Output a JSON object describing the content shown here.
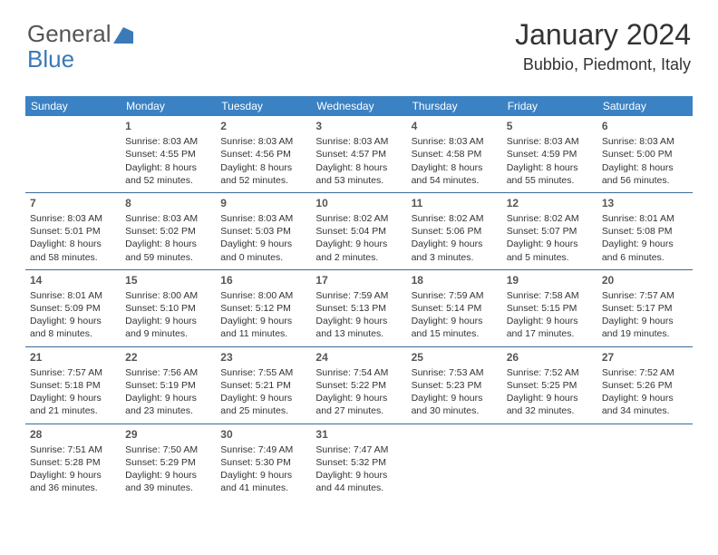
{
  "logo": {
    "part1": "General",
    "part2": "Blue"
  },
  "title": "January 2024",
  "location": "Bubbio, Piedmont, Italy",
  "colors": {
    "header_bg": "#3a82c4",
    "header_text": "#ffffff",
    "row_border": "#3a6a9a",
    "logo_gray": "#555555",
    "logo_blue": "#3a7ab8",
    "body_text": "#333333"
  },
  "dayNames": [
    "Sunday",
    "Monday",
    "Tuesday",
    "Wednesday",
    "Thursday",
    "Friday",
    "Saturday"
  ],
  "weeks": [
    [
      null,
      {
        "n": "1",
        "sr": "8:03 AM",
        "ss": "4:55 PM",
        "dl": "8 hours and 52 minutes."
      },
      {
        "n": "2",
        "sr": "8:03 AM",
        "ss": "4:56 PM",
        "dl": "8 hours and 52 minutes."
      },
      {
        "n": "3",
        "sr": "8:03 AM",
        "ss": "4:57 PM",
        "dl": "8 hours and 53 minutes."
      },
      {
        "n": "4",
        "sr": "8:03 AM",
        "ss": "4:58 PM",
        "dl": "8 hours and 54 minutes."
      },
      {
        "n": "5",
        "sr": "8:03 AM",
        "ss": "4:59 PM",
        "dl": "8 hours and 55 minutes."
      },
      {
        "n": "6",
        "sr": "8:03 AM",
        "ss": "5:00 PM",
        "dl": "8 hours and 56 minutes."
      }
    ],
    [
      {
        "n": "7",
        "sr": "8:03 AM",
        "ss": "5:01 PM",
        "dl": "8 hours and 58 minutes."
      },
      {
        "n": "8",
        "sr": "8:03 AM",
        "ss": "5:02 PM",
        "dl": "8 hours and 59 minutes."
      },
      {
        "n": "9",
        "sr": "8:03 AM",
        "ss": "5:03 PM",
        "dl": "9 hours and 0 minutes."
      },
      {
        "n": "10",
        "sr": "8:02 AM",
        "ss": "5:04 PM",
        "dl": "9 hours and 2 minutes."
      },
      {
        "n": "11",
        "sr": "8:02 AM",
        "ss": "5:06 PM",
        "dl": "9 hours and 3 minutes."
      },
      {
        "n": "12",
        "sr": "8:02 AM",
        "ss": "5:07 PM",
        "dl": "9 hours and 5 minutes."
      },
      {
        "n": "13",
        "sr": "8:01 AM",
        "ss": "5:08 PM",
        "dl": "9 hours and 6 minutes."
      }
    ],
    [
      {
        "n": "14",
        "sr": "8:01 AM",
        "ss": "5:09 PM",
        "dl": "9 hours and 8 minutes."
      },
      {
        "n": "15",
        "sr": "8:00 AM",
        "ss": "5:10 PM",
        "dl": "9 hours and 9 minutes."
      },
      {
        "n": "16",
        "sr": "8:00 AM",
        "ss": "5:12 PM",
        "dl": "9 hours and 11 minutes."
      },
      {
        "n": "17",
        "sr": "7:59 AM",
        "ss": "5:13 PM",
        "dl": "9 hours and 13 minutes."
      },
      {
        "n": "18",
        "sr": "7:59 AM",
        "ss": "5:14 PM",
        "dl": "9 hours and 15 minutes."
      },
      {
        "n": "19",
        "sr": "7:58 AM",
        "ss": "5:15 PM",
        "dl": "9 hours and 17 minutes."
      },
      {
        "n": "20",
        "sr": "7:57 AM",
        "ss": "5:17 PM",
        "dl": "9 hours and 19 minutes."
      }
    ],
    [
      {
        "n": "21",
        "sr": "7:57 AM",
        "ss": "5:18 PM",
        "dl": "9 hours and 21 minutes."
      },
      {
        "n": "22",
        "sr": "7:56 AM",
        "ss": "5:19 PM",
        "dl": "9 hours and 23 minutes."
      },
      {
        "n": "23",
        "sr": "7:55 AM",
        "ss": "5:21 PM",
        "dl": "9 hours and 25 minutes."
      },
      {
        "n": "24",
        "sr": "7:54 AM",
        "ss": "5:22 PM",
        "dl": "9 hours and 27 minutes."
      },
      {
        "n": "25",
        "sr": "7:53 AM",
        "ss": "5:23 PM",
        "dl": "9 hours and 30 minutes."
      },
      {
        "n": "26",
        "sr": "7:52 AM",
        "ss": "5:25 PM",
        "dl": "9 hours and 32 minutes."
      },
      {
        "n": "27",
        "sr": "7:52 AM",
        "ss": "5:26 PM",
        "dl": "9 hours and 34 minutes."
      }
    ],
    [
      {
        "n": "28",
        "sr": "7:51 AM",
        "ss": "5:28 PM",
        "dl": "9 hours and 36 minutes."
      },
      {
        "n": "29",
        "sr": "7:50 AM",
        "ss": "5:29 PM",
        "dl": "9 hours and 39 minutes."
      },
      {
        "n": "30",
        "sr": "7:49 AM",
        "ss": "5:30 PM",
        "dl": "9 hours and 41 minutes."
      },
      {
        "n": "31",
        "sr": "7:47 AM",
        "ss": "5:32 PM",
        "dl": "9 hours and 44 minutes."
      },
      null,
      null,
      null
    ]
  ],
  "labels": {
    "sunrise": "Sunrise:",
    "sunset": "Sunset:",
    "daylight": "Daylight:"
  }
}
